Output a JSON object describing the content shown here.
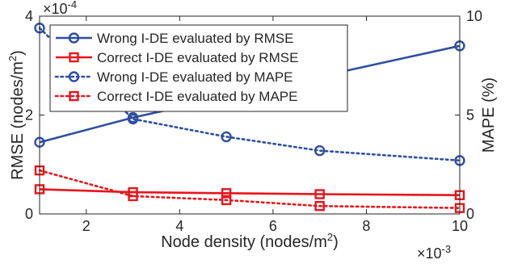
{
  "chart_data": {
    "type": "line",
    "xlabel_main": "Node density (nodes/m",
    "xlabel_sup": "2",
    "xlabel_tail": ")",
    "ylabel_left_main": "RMSE (nodes/m",
    "ylabel_left_sup": "2",
    "ylabel_left_tail": ")",
    "ylabel_right": "MAPE (%)",
    "x_exponent_base": "×10",
    "x_exponent_power": "-3",
    "y_exponent_base": "×10",
    "y_exponent_power": "-4",
    "xlim": [
      1,
      10
    ],
    "ylim_left": [
      0,
      4
    ],
    "ylim_right": [
      0,
      10
    ],
    "x_ticks": [
      2,
      4,
      6,
      8,
      10
    ],
    "y_left_ticks": [
      0,
      2,
      4
    ],
    "y_right_ticks": [
      0,
      5,
      10
    ],
    "grid": false,
    "legend_position": "top-left",
    "colors": {
      "blue": "#2e4fa0",
      "red": "#e8151b",
      "axis": "#262626"
    },
    "series": [
      {
        "name": "Wrong I-DE evaluated by RMSE",
        "axis": "left",
        "color": "#2e4fa0",
        "line": "solid",
        "marker": "circle",
        "x": [
          1,
          3,
          10
        ],
        "y": [
          1.45,
          1.95,
          3.4
        ]
      },
      {
        "name": "Correct I-DE evaluated by RMSE",
        "axis": "left",
        "color": "#e8151b",
        "line": "solid",
        "marker": "square",
        "x": [
          1,
          3,
          5,
          7,
          10
        ],
        "y": [
          0.5,
          0.44,
          0.42,
          0.4,
          0.38
        ]
      },
      {
        "name": "Wrong I-DE evaluated by MAPE",
        "axis": "right",
        "color": "#2e4fa0",
        "line": "dotted",
        "marker": "circle",
        "x": [
          1,
          3,
          5,
          7,
          10
        ],
        "y": [
          9.4,
          4.8,
          3.9,
          3.2,
          2.7
        ]
      },
      {
        "name": "Correct I-DE evaluated by MAPE",
        "axis": "right",
        "color": "#e8151b",
        "line": "dotted",
        "marker": "square",
        "x": [
          1,
          3,
          5,
          7,
          10
        ],
        "y": [
          2.2,
          0.9,
          0.7,
          0.4,
          0.3
        ]
      }
    ]
  }
}
